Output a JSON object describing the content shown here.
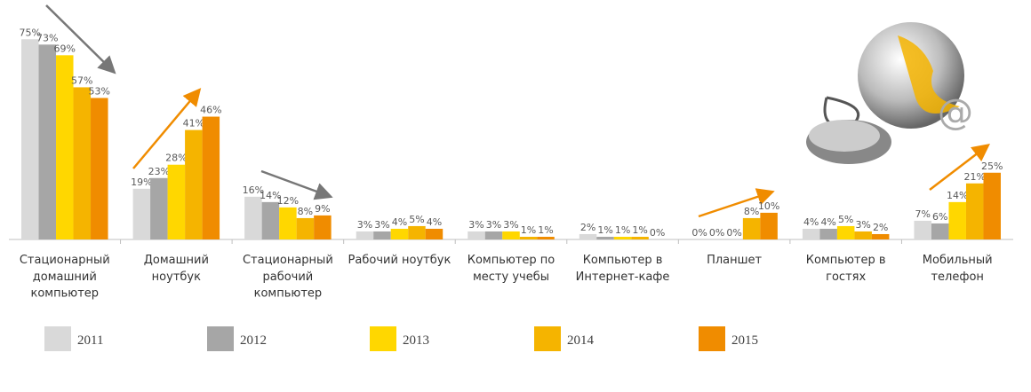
{
  "chart_data": {
    "type": "bar",
    "categories": [
      "Стационарный\nдомашний\nкомпьютер",
      "Домашний\nноутбук",
      "Стационарный\nрабочий\nкомпьютер",
      "Рабочий ноутбук",
      "Компьютер по\nместу учебы",
      "Компьютер в\nИнтернет-кафе",
      "Планшет",
      "Компьютер в\nгостях",
      "Мобильный\nтелефон"
    ],
    "series": [
      {
        "name": "2011",
        "color": "#d9d9d9",
        "values": [
          75,
          19,
          16,
          3,
          3,
          2,
          0,
          4,
          7
        ],
        "value_labels": [
          "75%",
          "19%",
          "16%",
          "3%",
          "3%",
          "2%",
          "0%",
          "4%",
          "7%"
        ]
      },
      {
        "name": "2012",
        "color": "#a6a6a6",
        "values": [
          73,
          23,
          14,
          3,
          3,
          1,
          0,
          4,
          6
        ],
        "value_labels": [
          "73%",
          "23%",
          "14%",
          "3%",
          "3%",
          "1%",
          "0%",
          "4%",
          "6%"
        ]
      },
      {
        "name": "2013",
        "color": "#ffd700",
        "values": [
          69,
          28,
          12,
          4,
          3,
          1,
          0,
          5,
          14
        ],
        "value_labels": [
          "69%",
          "28%",
          "12%",
          "4%",
          "3%",
          "1%",
          "0%",
          "5%",
          "14%"
        ]
      },
      {
        "name": "2014",
        "color": "#f5b400",
        "values": [
          57,
          41,
          8,
          5,
          1,
          1,
          8,
          3,
          21
        ],
        "value_labels": [
          "57%",
          "41%",
          "8%",
          "5%",
          "1%",
          "1%",
          "8%",
          "3%",
          "21%"
        ]
      },
      {
        "name": "2015",
        "color": "#f08c00",
        "values": [
          53,
          46,
          9,
          4,
          1,
          0,
          10,
          2,
          25
        ],
        "value_labels": [
          "53%",
          "46%",
          "9%",
          "4%",
          "1%",
          "0%",
          "10%",
          "2%",
          "25%"
        ]
      }
    ]
  }
}
